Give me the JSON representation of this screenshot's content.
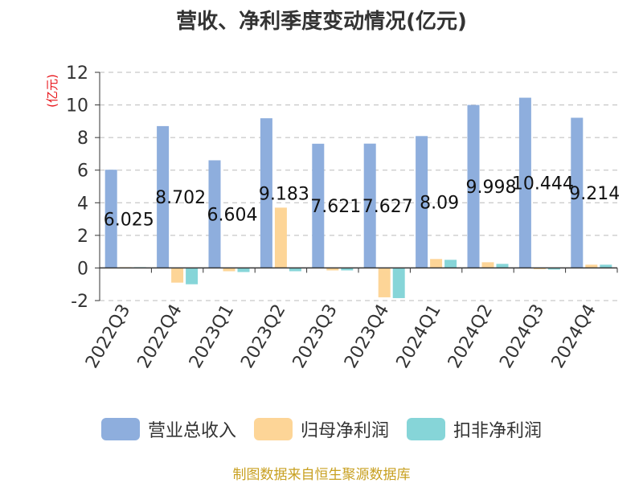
{
  "chart_data": {
    "type": "bar",
    "title": "营收、净利季度变动情况(亿元)",
    "ylabel": "(亿元)",
    "xlabel": "",
    "ylim": [
      -2,
      12
    ],
    "yticks": [
      -2,
      0,
      2,
      4,
      6,
      8,
      10,
      12
    ],
    "grid": true,
    "legend_position": "bottom",
    "categories": [
      "2022Q3",
      "2022Q4",
      "2023Q1",
      "2023Q2",
      "2023Q3",
      "2023Q4",
      "2024Q1",
      "2024Q2",
      "2024Q3",
      "2024Q4"
    ],
    "series": [
      {
        "name": "营业总收入",
        "color": "#8eaedd",
        "values": [
          6.025,
          8.702,
          6.604,
          9.183,
          7.621,
          7.627,
          8.09,
          9.998,
          10.444,
          9.214
        ],
        "labels": [
          "6.025",
          "8.702",
          "6.604",
          "9.183",
          "7.621",
          "7.627",
          "8.09",
          "9.998",
          "10.444",
          "9.214"
        ]
      },
      {
        "name": "归母净利润",
        "color": "#fdd597",
        "values": [
          0.05,
          -0.9,
          -0.2,
          3.7,
          -0.15,
          -1.8,
          0.55,
          0.35,
          -0.05,
          0.2
        ]
      },
      {
        "name": "扣非净利润",
        "color": "#86d5d8",
        "values": [
          0.05,
          -1.0,
          -0.25,
          -0.2,
          -0.15,
          -1.85,
          0.5,
          0.25,
          -0.1,
          0.2
        ]
      }
    ]
  },
  "source_note": "制图数据来自恒生聚源数据库"
}
